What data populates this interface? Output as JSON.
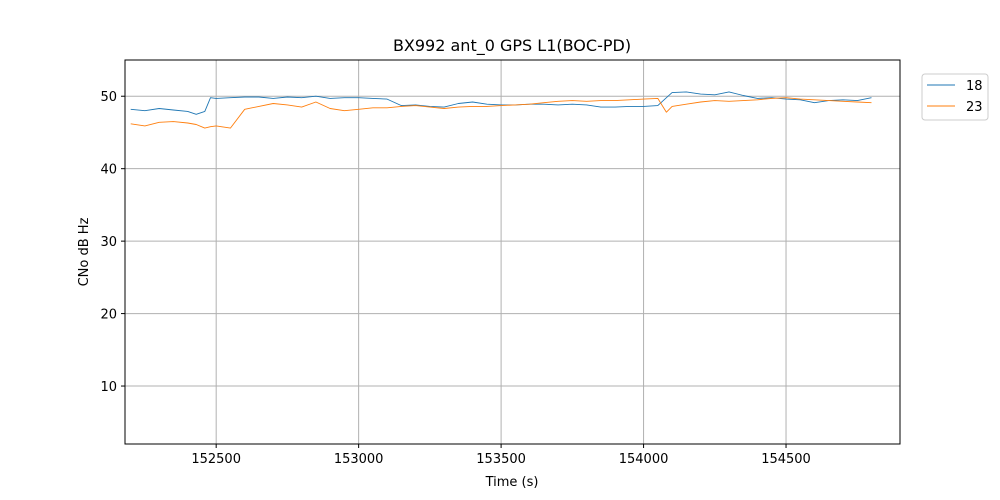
{
  "chart_data": {
    "type": "line",
    "title": "BX992 ant_0 GPS L1(BOC-PD)",
    "xlabel": "Time (s)",
    "ylabel": "CNo dB Hz",
    "xlim": [
      152180,
      154900
    ],
    "ylim": [
      2,
      55
    ],
    "xticks": [
      152500,
      153000,
      153500,
      154000,
      154500
    ],
    "yticks": [
      10,
      20,
      30,
      40,
      50
    ],
    "grid": true,
    "legend_position": "upper-right-outside",
    "series": [
      {
        "name": "18",
        "color": "#1f77b4",
        "x": [
          152200,
          152250,
          152300,
          152350,
          152400,
          152430,
          152460,
          152480,
          152500,
          152550,
          152600,
          152650,
          152700,
          152750,
          152800,
          152850,
          152900,
          152950,
          153000,
          153050,
          153100,
          153150,
          153200,
          153250,
          153300,
          153350,
          153400,
          153450,
          153500,
          153550,
          153600,
          153650,
          153700,
          153750,
          153800,
          153850,
          153900,
          153950,
          154000,
          154050,
          154080,
          154100,
          154150,
          154200,
          154250,
          154300,
          154350,
          154400,
          154450,
          154500,
          154550,
          154600,
          154650,
          154700,
          154750,
          154800
        ],
        "values": [
          48.2,
          48.0,
          48.3,
          48.1,
          47.9,
          47.5,
          47.9,
          49.8,
          49.7,
          49.8,
          49.9,
          49.9,
          49.7,
          49.9,
          49.8,
          50.0,
          49.7,
          49.8,
          49.8,
          49.7,
          49.6,
          48.7,
          48.8,
          48.6,
          48.5,
          49.0,
          49.2,
          48.9,
          48.8,
          48.8,
          48.9,
          48.9,
          48.8,
          48.9,
          48.8,
          48.5,
          48.5,
          48.6,
          48.6,
          48.7,
          49.8,
          50.5,
          50.6,
          50.3,
          50.2,
          50.6,
          50.1,
          49.7,
          49.8,
          49.6,
          49.5,
          49.1,
          49.4,
          49.5,
          49.4,
          49.8
        ]
      },
      {
        "name": "23",
        "color": "#ff7f0e",
        "x": [
          152200,
          152250,
          152300,
          152350,
          152400,
          152430,
          152460,
          152480,
          152500,
          152550,
          152600,
          152650,
          152700,
          152750,
          152800,
          152850,
          152900,
          152950,
          153000,
          153050,
          153100,
          153150,
          153200,
          153250,
          153300,
          153350,
          153400,
          153450,
          153500,
          153550,
          153600,
          153650,
          153700,
          153750,
          153800,
          153850,
          153900,
          153950,
          154000,
          154050,
          154080,
          154100,
          154150,
          154200,
          154250,
          154300,
          154350,
          154400,
          154450,
          154500,
          154550,
          154600,
          154650,
          154700,
          154750,
          154800
        ],
        "values": [
          46.2,
          45.9,
          46.4,
          46.5,
          46.3,
          46.1,
          45.6,
          45.8,
          45.9,
          45.6,
          48.2,
          48.6,
          49.0,
          48.8,
          48.5,
          49.2,
          48.3,
          48.0,
          48.2,
          48.4,
          48.4,
          48.6,
          48.7,
          48.5,
          48.3,
          48.5,
          48.6,
          48.6,
          48.7,
          48.8,
          48.9,
          49.1,
          49.3,
          49.4,
          49.3,
          49.4,
          49.4,
          49.5,
          49.6,
          49.7,
          47.8,
          48.6,
          48.9,
          49.2,
          49.4,
          49.3,
          49.4,
          49.5,
          49.7,
          49.8,
          49.6,
          49.5,
          49.4,
          49.3,
          49.2,
          49.1
        ]
      }
    ]
  }
}
